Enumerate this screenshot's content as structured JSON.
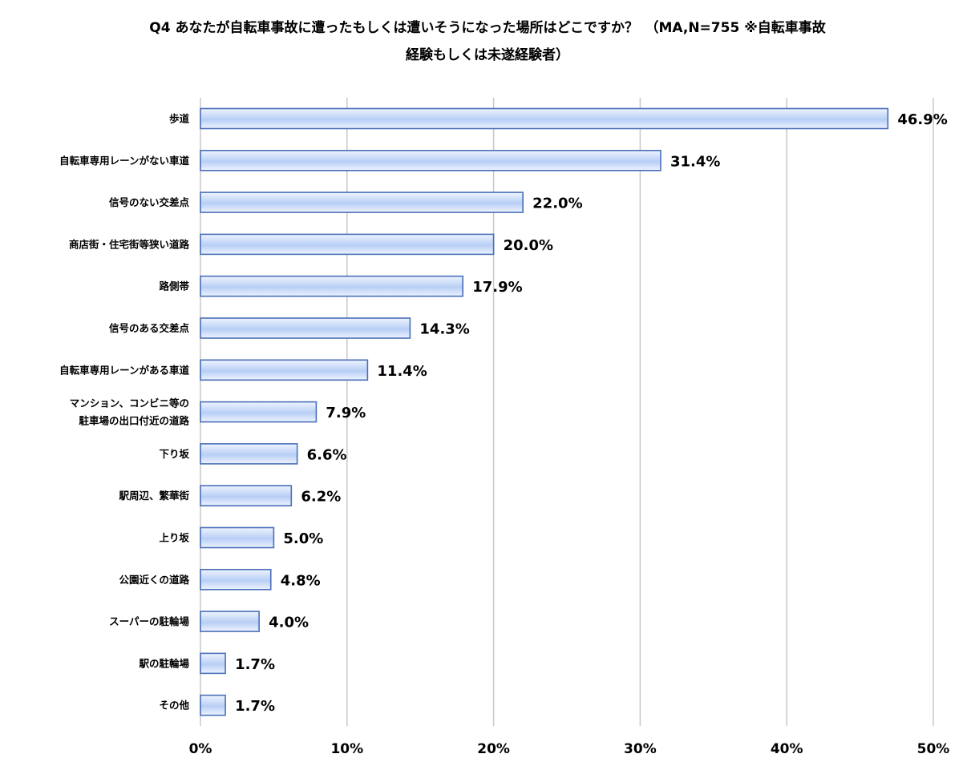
{
  "title_line1": "Q4 あなたが自転車事故に遭ったもしくは遭いそうになった場所はどこですか？　（MA,N=755 ※自転車事故",
  "title_line2": "経験もしくは未遂経験者）",
  "colors": {
    "bar_fill_top": "#eef4ff",
    "bar_fill_mid": "#b8cef5",
    "bar_stroke": "#4a6fb8",
    "grid": "#c8c8c8"
  },
  "chart_data": {
    "type": "bar",
    "orientation": "horizontal",
    "categories": [
      "歩道",
      "自転車専用レーンがない車道",
      "信号のない交差点",
      "商店街・住宅街等狭い道路",
      "路側帯",
      "信号のある交差点",
      "自転車専用レーンがある車道",
      "マンション、コンビニ等の\n駐車場の出口付近の道路",
      "下り坂",
      "駅周辺、繁華街",
      "上り坂",
      "公園近くの道路",
      "スーパーの駐輪場",
      "駅の駐輪場",
      "その他"
    ],
    "values": [
      46.9,
      31.4,
      22.0,
      20.0,
      17.9,
      14.3,
      11.4,
      7.9,
      6.6,
      6.2,
      5.0,
      4.8,
      4.0,
      1.7,
      1.7
    ],
    "value_labels": [
      "46.9%",
      "31.4%",
      "22.0%",
      "20.0%",
      "17.9%",
      "14.3%",
      "11.4%",
      "7.9%",
      "6.6%",
      "6.2%",
      "5.0%",
      "4.8%",
      "4.0%",
      "1.7%",
      "1.7%"
    ],
    "xlim": [
      0,
      50
    ],
    "xticks": [
      0,
      10,
      20,
      30,
      40,
      50
    ],
    "xtick_labels": [
      "0%",
      "10%",
      "20%",
      "30%",
      "40%",
      "50%"
    ],
    "grid": true
  }
}
